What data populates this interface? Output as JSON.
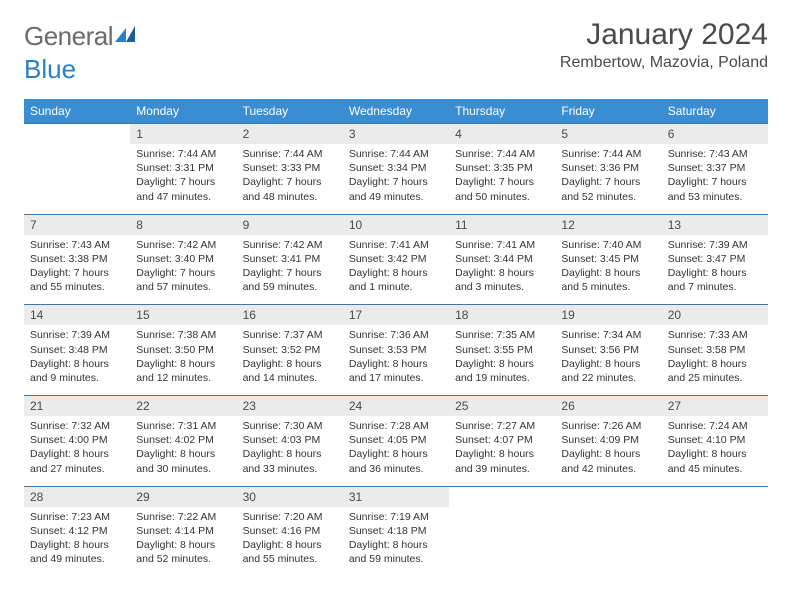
{
  "logo": {
    "word1": "General",
    "word2": "Blue"
  },
  "title": "January 2024",
  "location": "Rembertow, Mazovia, Poland",
  "colors": {
    "header_bg": "#3a8dd0",
    "header_text": "#ffffff",
    "daynum_bg": "#ebebeb",
    "row_border": "#3a78a8",
    "logo_gray": "#6b6b6b",
    "logo_blue": "#2a7fc9"
  },
  "day_headers": [
    "Sunday",
    "Monday",
    "Tuesday",
    "Wednesday",
    "Thursday",
    "Friday",
    "Saturday"
  ],
  "weeks": [
    {
      "nums": [
        "",
        "1",
        "2",
        "3",
        "4",
        "5",
        "6"
      ],
      "cells": [
        null,
        {
          "sunrise": "7:44 AM",
          "sunset": "3:31 PM",
          "daylight": "7 hours and 47 minutes."
        },
        {
          "sunrise": "7:44 AM",
          "sunset": "3:33 PM",
          "daylight": "7 hours and 48 minutes."
        },
        {
          "sunrise": "7:44 AM",
          "sunset": "3:34 PM",
          "daylight": "7 hours and 49 minutes."
        },
        {
          "sunrise": "7:44 AM",
          "sunset": "3:35 PM",
          "daylight": "7 hours and 50 minutes."
        },
        {
          "sunrise": "7:44 AM",
          "sunset": "3:36 PM",
          "daylight": "7 hours and 52 minutes."
        },
        {
          "sunrise": "7:43 AM",
          "sunset": "3:37 PM",
          "daylight": "7 hours and 53 minutes."
        }
      ]
    },
    {
      "nums": [
        "7",
        "8",
        "9",
        "10",
        "11",
        "12",
        "13"
      ],
      "cells": [
        {
          "sunrise": "7:43 AM",
          "sunset": "3:38 PM",
          "daylight": "7 hours and 55 minutes."
        },
        {
          "sunrise": "7:42 AM",
          "sunset": "3:40 PM",
          "daylight": "7 hours and 57 minutes."
        },
        {
          "sunrise": "7:42 AM",
          "sunset": "3:41 PM",
          "daylight": "7 hours and 59 minutes."
        },
        {
          "sunrise": "7:41 AM",
          "sunset": "3:42 PM",
          "daylight": "8 hours and 1 minute."
        },
        {
          "sunrise": "7:41 AM",
          "sunset": "3:44 PM",
          "daylight": "8 hours and 3 minutes."
        },
        {
          "sunrise": "7:40 AM",
          "sunset": "3:45 PM",
          "daylight": "8 hours and 5 minutes."
        },
        {
          "sunrise": "7:39 AM",
          "sunset": "3:47 PM",
          "daylight": "8 hours and 7 minutes."
        }
      ]
    },
    {
      "nums": [
        "14",
        "15",
        "16",
        "17",
        "18",
        "19",
        "20"
      ],
      "cells": [
        {
          "sunrise": "7:39 AM",
          "sunset": "3:48 PM",
          "daylight": "8 hours and 9 minutes."
        },
        {
          "sunrise": "7:38 AM",
          "sunset": "3:50 PM",
          "daylight": "8 hours and 12 minutes."
        },
        {
          "sunrise": "7:37 AM",
          "sunset": "3:52 PM",
          "daylight": "8 hours and 14 minutes."
        },
        {
          "sunrise": "7:36 AM",
          "sunset": "3:53 PM",
          "daylight": "8 hours and 17 minutes."
        },
        {
          "sunrise": "7:35 AM",
          "sunset": "3:55 PM",
          "daylight": "8 hours and 19 minutes."
        },
        {
          "sunrise": "7:34 AM",
          "sunset": "3:56 PM",
          "daylight": "8 hours and 22 minutes."
        },
        {
          "sunrise": "7:33 AM",
          "sunset": "3:58 PM",
          "daylight": "8 hours and 25 minutes."
        }
      ]
    },
    {
      "nums": [
        "21",
        "22",
        "23",
        "24",
        "25",
        "26",
        "27"
      ],
      "cells": [
        {
          "sunrise": "7:32 AM",
          "sunset": "4:00 PM",
          "daylight": "8 hours and 27 minutes."
        },
        {
          "sunrise": "7:31 AM",
          "sunset": "4:02 PM",
          "daylight": "8 hours and 30 minutes."
        },
        {
          "sunrise": "7:30 AM",
          "sunset": "4:03 PM",
          "daylight": "8 hours and 33 minutes."
        },
        {
          "sunrise": "7:28 AM",
          "sunset": "4:05 PM",
          "daylight": "8 hours and 36 minutes."
        },
        {
          "sunrise": "7:27 AM",
          "sunset": "4:07 PM",
          "daylight": "8 hours and 39 minutes."
        },
        {
          "sunrise": "7:26 AM",
          "sunset": "4:09 PM",
          "daylight": "8 hours and 42 minutes."
        },
        {
          "sunrise": "7:24 AM",
          "sunset": "4:10 PM",
          "daylight": "8 hours and 45 minutes."
        }
      ]
    },
    {
      "nums": [
        "28",
        "29",
        "30",
        "31",
        "",
        "",
        ""
      ],
      "cells": [
        {
          "sunrise": "7:23 AM",
          "sunset": "4:12 PM",
          "daylight": "8 hours and 49 minutes."
        },
        {
          "sunrise": "7:22 AM",
          "sunset": "4:14 PM",
          "daylight": "8 hours and 52 minutes."
        },
        {
          "sunrise": "7:20 AM",
          "sunset": "4:16 PM",
          "daylight": "8 hours and 55 minutes."
        },
        {
          "sunrise": "7:19 AM",
          "sunset": "4:18 PM",
          "daylight": "8 hours and 59 minutes."
        },
        null,
        null,
        null
      ]
    }
  ],
  "labels": {
    "sunrise": "Sunrise:",
    "sunset": "Sunset:",
    "daylight": "Daylight:"
  }
}
